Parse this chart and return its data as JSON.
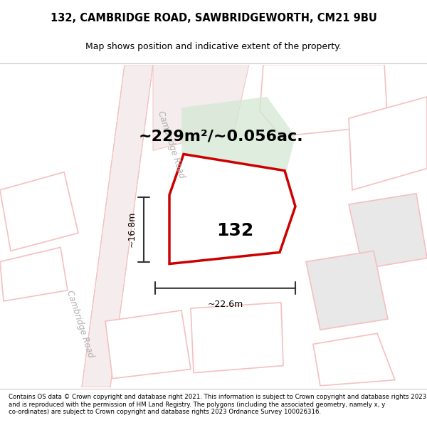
{
  "title": "132, CAMBRIDGE ROAD, SAWBRIDGEWORTH, CM21 9BU",
  "subtitle": "Map shows position and indicative extent of the property.",
  "footer": "Contains OS data © Crown copyright and database right 2021. This information is subject to Crown copyright and database rights 2023 and is reproduced with the permission of HM Land Registry. The polygons (including the associated geometry, namely x, y co-ordinates) are subject to Crown copyright and database rights 2023 Ordnance Survey 100026316.",
  "area_text": "~229m²/~0.056ac.",
  "label_132": "132",
  "dim_width": "~22.6m",
  "dim_height": "~16.8m",
  "road_label_top": "Cambridge Road",
  "road_label_bottom": "Cambridge Road",
  "bg_color": "#ffffff",
  "property_edge": "#cc0000",
  "road_color_light": "#f5c0c0",
  "green_fill": "#d4e8d4"
}
